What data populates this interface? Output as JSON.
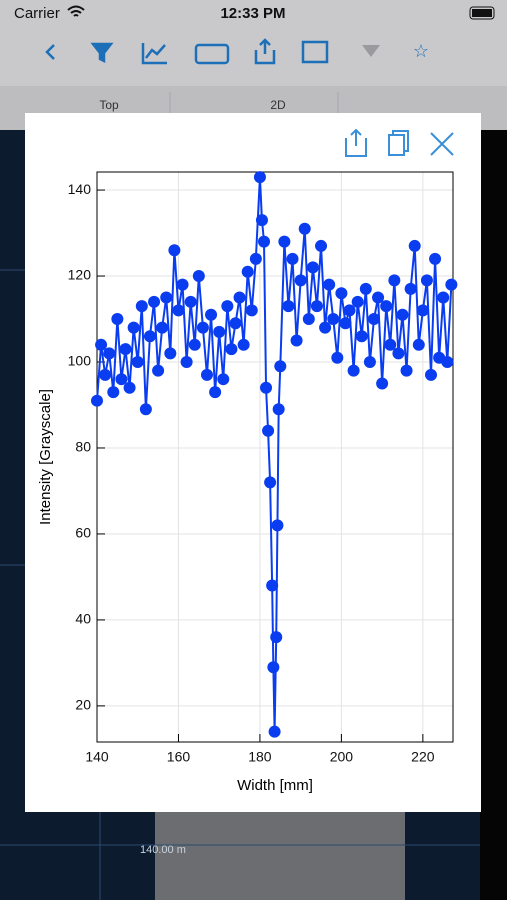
{
  "status_bar": {
    "carrier": "Carrier",
    "time": "12:33 PM"
  },
  "tabs": [
    "Top",
    "2D"
  ],
  "background": {
    "depth_label": "140.00 m"
  },
  "chart_data": {
    "type": "line",
    "xlabel": "Width [mm]",
    "ylabel": "Intensity [Grayscale]",
    "x": [
      140,
      141,
      142,
      143,
      144,
      145,
      146,
      147,
      148,
      149,
      150,
      151,
      152,
      153,
      154,
      155,
      156,
      157,
      158,
      159,
      160,
      161,
      162,
      163,
      164,
      165,
      166,
      167,
      168,
      169,
      170,
      171,
      172,
      173,
      174,
      175,
      176,
      177,
      178,
      179,
      180,
      180.5,
      181,
      181.5,
      182,
      182.5,
      183,
      183.3,
      183.6,
      184,
      184.3,
      184.6,
      185,
      186,
      187,
      188,
      189,
      190,
      191,
      192,
      193,
      194,
      195,
      196,
      197,
      198,
      199,
      200,
      201,
      202,
      203,
      204,
      205,
      206,
      207,
      208,
      209,
      210,
      211,
      212,
      213,
      214,
      215,
      216,
      217,
      218,
      219,
      220,
      221,
      222,
      223,
      224,
      225,
      226,
      227
    ],
    "values": [
      91,
      104,
      97,
      102,
      93,
      110,
      96,
      103,
      94,
      108,
      100,
      113,
      89,
      106,
      114,
      98,
      108,
      115,
      102,
      126,
      112,
      118,
      100,
      114,
      104,
      120,
      108,
      97,
      111,
      93,
      107,
      96,
      113,
      103,
      109,
      115,
      104,
      121,
      112,
      124,
      143,
      133,
      128,
      94,
      84,
      72,
      48,
      29,
      14,
      36,
      62,
      89,
      99,
      128,
      113,
      124,
      105,
      119,
      131,
      110,
      122,
      113,
      127,
      108,
      118,
      110,
      101,
      116,
      109,
      112,
      98,
      114,
      106,
      117,
      100,
      110,
      115,
      95,
      113,
      104,
      119,
      102,
      111,
      98,
      117,
      127,
      104,
      112,
      119,
      97,
      124,
      101,
      115,
      100,
      118
    ],
    "color": "#0a3cf0",
    "xlim": [
      140,
      227.4
    ],
    "ylim": [
      11.6,
      144.2
    ],
    "xticks": [
      140,
      160,
      180,
      200,
      220
    ],
    "yticks": [
      20,
      40,
      60,
      80,
      100,
      120,
      140
    ],
    "grid": true
  }
}
